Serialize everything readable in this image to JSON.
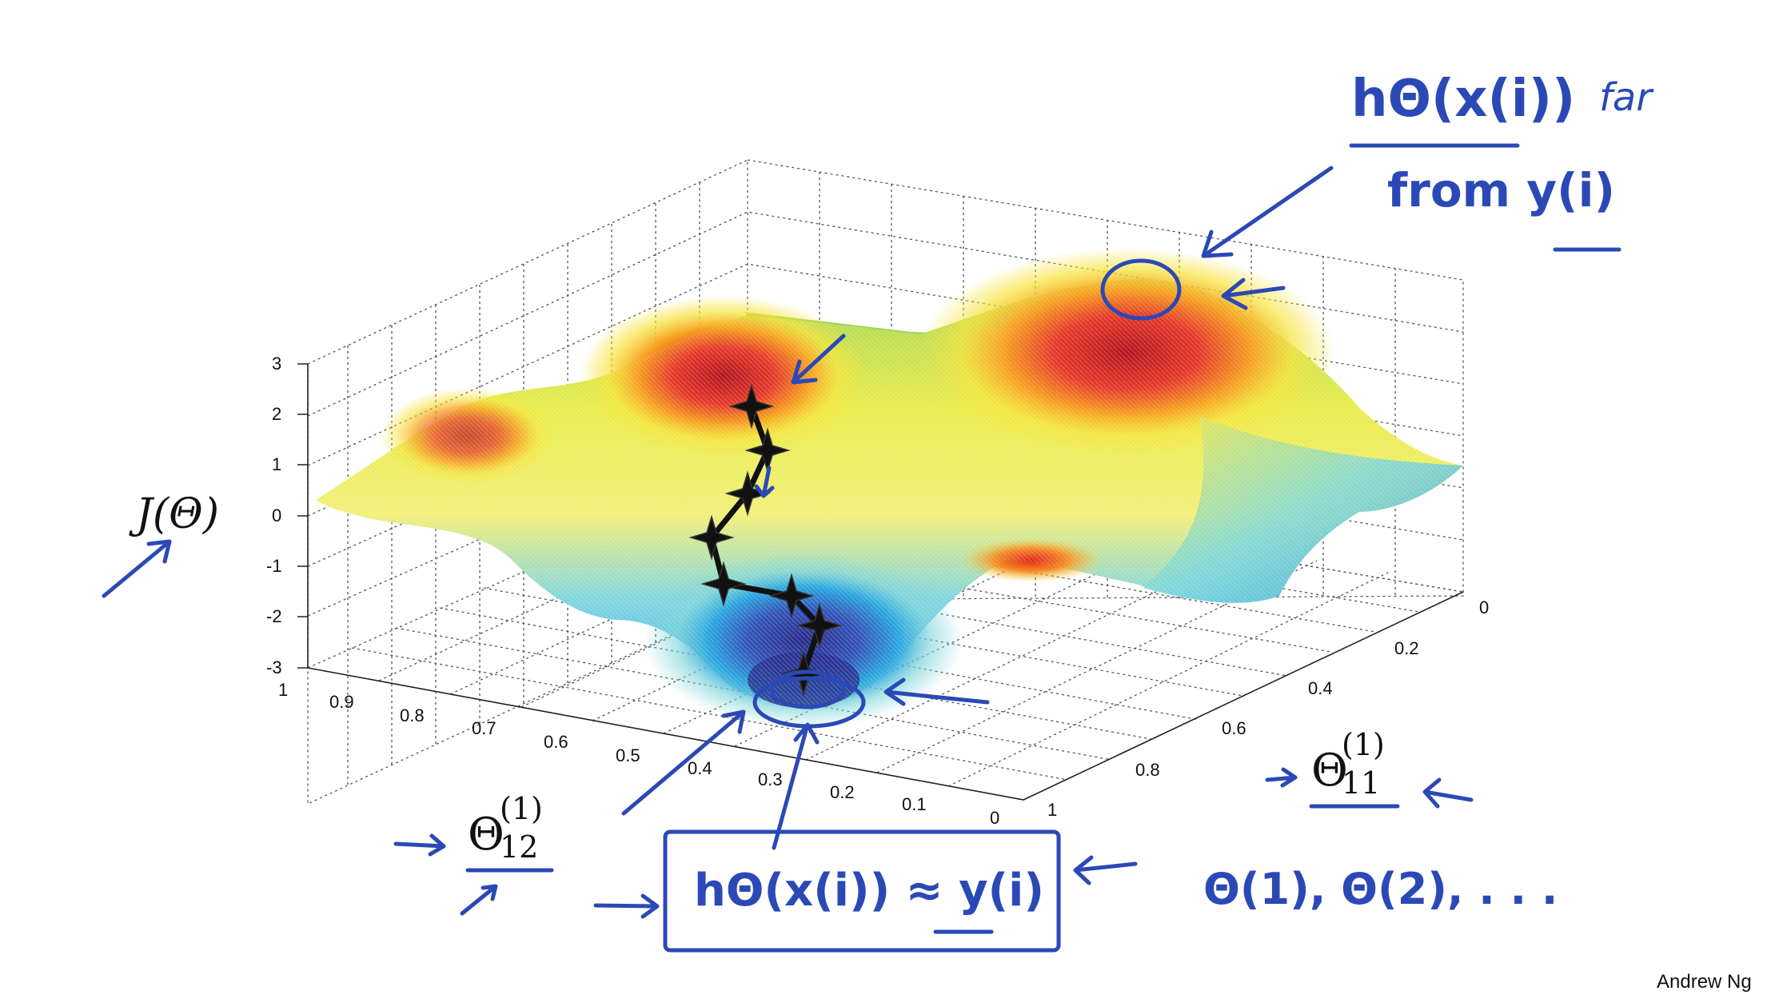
{
  "plot": {
    "z_ticks": [
      "3",
      "2",
      "1",
      "0",
      "-1",
      "-2",
      "-3"
    ],
    "left_axis_ticks": [
      "1",
      "0.9",
      "0.8",
      "0.7",
      "0.6",
      "0.5",
      "0.4",
      "0.3",
      "0.2",
      "0.1",
      "0"
    ],
    "right_axis_ticks": [
      "0",
      "0.2",
      "0.4",
      "0.6",
      "0.8",
      "1"
    ],
    "z_label": "J(Θ)"
  },
  "annotations": {
    "axis_label_right": {
      "symbol": "Θ",
      "sup": "(1)",
      "sub": "11"
    },
    "axis_label_left": {
      "symbol": "Θ",
      "sup": "(1)",
      "sub": "12"
    },
    "top_note_numerator": "hΘ(x(i))",
    "top_note_far": "far",
    "top_note_denominator": "from y(i)",
    "box_note": "hΘ(x(i)) ≈ y(i)",
    "theta_list": "Θ(1), Θ(2), . . ."
  },
  "footer": {
    "credit": "Andrew Ng"
  },
  "colors": {
    "ink": "#2b49b6",
    "surface_low": "#2a2f8f",
    "surface_high": "#c81e1e",
    "path": "#111111"
  }
}
